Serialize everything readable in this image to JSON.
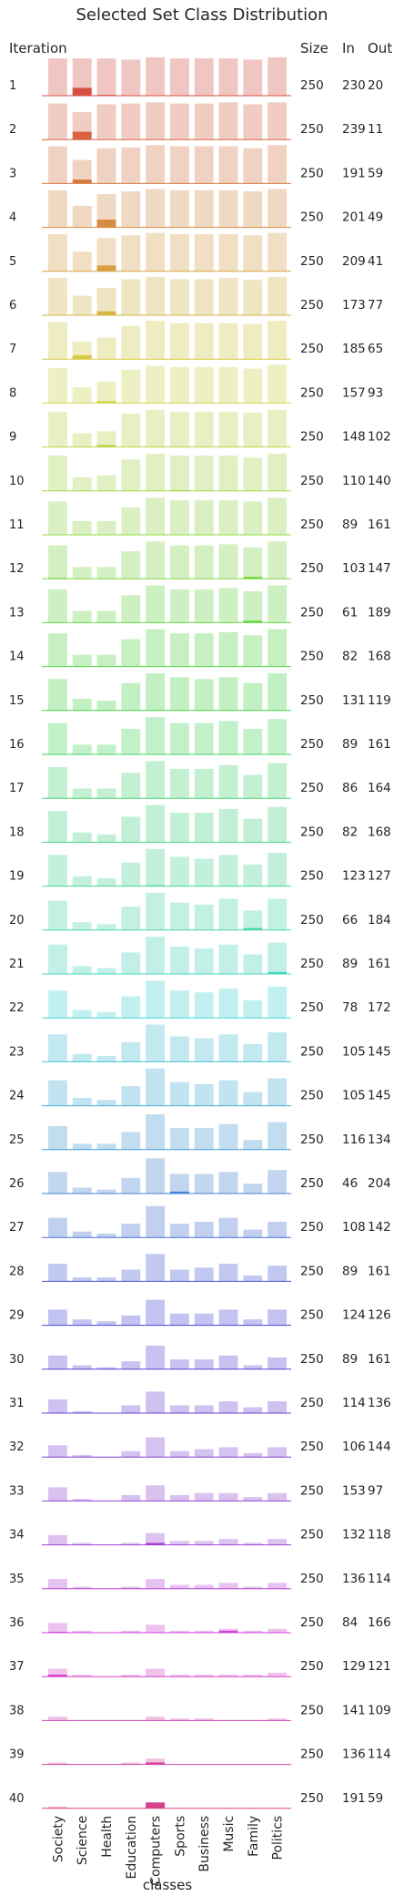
{
  "chart_data": {
    "type": "bar",
    "title": "Selected Set Class Distribution",
    "row_axis_label": "Iteration",
    "stat_headers": [
      "Size",
      "In",
      "Out"
    ],
    "xlabel": "classes",
    "categories": [
      "Society",
      "Science",
      "Health",
      "Education",
      "Computers",
      "Sports",
      "Business",
      "Music",
      "Family",
      "Politics"
    ],
    "ylim": [
      0,
      1
    ],
    "rows": [
      {
        "iteration": "1",
        "size": 250,
        "in": 230,
        "out": 20,
        "total": [
          0.95,
          0.95,
          0.95,
          0.92,
          0.98,
          0.95,
          0.95,
          0.95,
          0.92,
          0.98
        ],
        "in_values": [
          0,
          0.2,
          0.02,
          0,
          0,
          0,
          0,
          0,
          0,
          0
        ]
      },
      {
        "iteration": "2",
        "size": 250,
        "in": 239,
        "out": 11,
        "total": [
          0.92,
          0.7,
          0.9,
          0.92,
          0.95,
          0.92,
          0.92,
          0.95,
          0.9,
          0.95
        ],
        "in_values": [
          0,
          0.2,
          0,
          0,
          0,
          0,
          0,
          0,
          0,
          0
        ]
      },
      {
        "iteration": "3",
        "size": 250,
        "in": 191,
        "out": 59,
        "total": [
          0.95,
          0.6,
          0.9,
          0.92,
          0.98,
          0.95,
          0.95,
          0.95,
          0.9,
          0.98
        ],
        "in_values": [
          0,
          0.1,
          0,
          0,
          0,
          0,
          0,
          0,
          0,
          0
        ]
      },
      {
        "iteration": "4",
        "size": 250,
        "in": 201,
        "out": 49,
        "total": [
          0.95,
          0.55,
          0.85,
          0.92,
          0.98,
          0.95,
          0.95,
          0.95,
          0.92,
          0.98
        ],
        "in_values": [
          0,
          0,
          0.2,
          0,
          0,
          0,
          0,
          0,
          0,
          0
        ]
      },
      {
        "iteration": "5",
        "size": 250,
        "in": 209,
        "out": 41,
        "total": [
          0.95,
          0.5,
          0.85,
          0.92,
          0.98,
          0.95,
          0.95,
          0.95,
          0.92,
          0.98
        ],
        "in_values": [
          0,
          0,
          0.15,
          0,
          0,
          0,
          0,
          0,
          0,
          0
        ]
      },
      {
        "iteration": "6",
        "size": 250,
        "in": 173,
        "out": 77,
        "total": [
          0.95,
          0.5,
          0.7,
          0.92,
          0.98,
          0.92,
          0.92,
          0.95,
          0.9,
          0.98
        ],
        "in_values": [
          0,
          0,
          0.1,
          0,
          0,
          0,
          0,
          0,
          0,
          0
        ]
      },
      {
        "iteration": "7",
        "size": 250,
        "in": 185,
        "out": 65,
        "total": [
          0.95,
          0.45,
          0.55,
          0.85,
          0.98,
          0.92,
          0.92,
          0.92,
          0.9,
          0.98
        ],
        "in_values": [
          0,
          0.1,
          0,
          0,
          0,
          0,
          0,
          0,
          0,
          0
        ]
      },
      {
        "iteration": "8",
        "size": 250,
        "in": 157,
        "out": 93,
        "total": [
          0.9,
          0.4,
          0.55,
          0.85,
          0.95,
          0.92,
          0.92,
          0.92,
          0.88,
          0.98
        ],
        "in_values": [
          0,
          0,
          0.05,
          0,
          0,
          0,
          0,
          0,
          0,
          0
        ]
      },
      {
        "iteration": "9",
        "size": 250,
        "in": 148,
        "out": 102,
        "total": [
          0.9,
          0.35,
          0.4,
          0.85,
          0.95,
          0.9,
          0.9,
          0.9,
          0.88,
          0.95
        ],
        "in_values": [
          0,
          0,
          0.05,
          0,
          0,
          0,
          0,
          0,
          0,
          0
        ]
      },
      {
        "iteration": "10",
        "size": 250,
        "in": 110,
        "out": 140,
        "total": [
          0.9,
          0.35,
          0.4,
          0.8,
          0.95,
          0.9,
          0.9,
          0.9,
          0.85,
          0.95
        ],
        "in_values": [
          0,
          0,
          0,
          0,
          0,
          0.02,
          0,
          0,
          0,
          0
        ]
      },
      {
        "iteration": "11",
        "size": 250,
        "in": 89,
        "out": 161,
        "total": [
          0.85,
          0.35,
          0.35,
          0.7,
          0.95,
          0.88,
          0.88,
          0.88,
          0.85,
          0.95
        ],
        "in_values": [
          0,
          0,
          0,
          0,
          0,
          0,
          0,
          0,
          0,
          0
        ]
      },
      {
        "iteration": "12",
        "size": 250,
        "in": 103,
        "out": 147,
        "total": [
          0.85,
          0.3,
          0.3,
          0.7,
          0.95,
          0.85,
          0.85,
          0.88,
          0.8,
          0.95
        ],
        "in_values": [
          0.02,
          0,
          0,
          0,
          0,
          0,
          0,
          0,
          0.05,
          0
        ]
      },
      {
        "iteration": "13",
        "size": 250,
        "in": 61,
        "out": 189,
        "total": [
          0.85,
          0.3,
          0.3,
          0.7,
          0.95,
          0.85,
          0.85,
          0.88,
          0.8,
          0.95
        ],
        "in_values": [
          0,
          0,
          0,
          0,
          0,
          0,
          0,
          0,
          0.05,
          0
        ]
      },
      {
        "iteration": "14",
        "size": 250,
        "in": 82,
        "out": 168,
        "total": [
          0.85,
          0.3,
          0.3,
          0.7,
          0.95,
          0.85,
          0.85,
          0.88,
          0.8,
          0.95
        ],
        "in_values": [
          0,
          0,
          0,
          0,
          0,
          0,
          0,
          0,
          0,
          0
        ]
      },
      {
        "iteration": "15",
        "size": 250,
        "in": 131,
        "out": 119,
        "total": [
          0.8,
          0.3,
          0.25,
          0.7,
          0.95,
          0.85,
          0.8,
          0.85,
          0.7,
          0.95
        ],
        "in_values": [
          0,
          0,
          0,
          0,
          0,
          0,
          0,
          0,
          0,
          0
        ]
      },
      {
        "iteration": "16",
        "size": 250,
        "in": 89,
        "out": 161,
        "total": [
          0.8,
          0.25,
          0.25,
          0.65,
          0.95,
          0.8,
          0.8,
          0.85,
          0.65,
          0.9
        ],
        "in_values": [
          0,
          0,
          0,
          0,
          0,
          0,
          0,
          0,
          0,
          0
        ]
      },
      {
        "iteration": "17",
        "size": 250,
        "in": 86,
        "out": 164,
        "total": [
          0.8,
          0.25,
          0.25,
          0.65,
          0.95,
          0.75,
          0.75,
          0.85,
          0.6,
          0.9
        ],
        "in_values": [
          0,
          0,
          0,
          0,
          0,
          0,
          0,
          0,
          0,
          0
        ]
      },
      {
        "iteration": "18",
        "size": 250,
        "in": 82,
        "out": 168,
        "total": [
          0.8,
          0.25,
          0.2,
          0.65,
          0.95,
          0.75,
          0.75,
          0.85,
          0.6,
          0.9
        ],
        "in_values": [
          0,
          0,
          0,
          0,
          0,
          0,
          0,
          0,
          0,
          0
        ]
      },
      {
        "iteration": "19",
        "size": 250,
        "in": 123,
        "out": 127,
        "total": [
          0.8,
          0.25,
          0.2,
          0.6,
          0.95,
          0.75,
          0.7,
          0.8,
          0.55,
          0.85
        ],
        "in_values": [
          0,
          0,
          0,
          0,
          0.02,
          0,
          0,
          0,
          0,
          0
        ]
      },
      {
        "iteration": "20",
        "size": 250,
        "in": 66,
        "out": 184,
        "total": [
          0.75,
          0.2,
          0.15,
          0.6,
          0.95,
          0.7,
          0.65,
          0.8,
          0.5,
          0.8
        ],
        "in_values": [
          0,
          0,
          0,
          0,
          0,
          0,
          0,
          0,
          0.05,
          0
        ]
      },
      {
        "iteration": "21",
        "size": 250,
        "in": 89,
        "out": 161,
        "total": [
          0.75,
          0.2,
          0.15,
          0.55,
          0.95,
          0.7,
          0.65,
          0.75,
          0.5,
          0.8
        ],
        "in_values": [
          0,
          0,
          0,
          0,
          0,
          0,
          0,
          0,
          0,
          0.05
        ]
      },
      {
        "iteration": "22",
        "size": 250,
        "in": 78,
        "out": 172,
        "total": [
          0.7,
          0.2,
          0.15,
          0.55,
          0.95,
          0.7,
          0.65,
          0.75,
          0.45,
          0.8
        ],
        "in_values": [
          0,
          0,
          0,
          0,
          0,
          0,
          0,
          0,
          0,
          0
        ]
      },
      {
        "iteration": "23",
        "size": 250,
        "in": 105,
        "out": 145,
        "total": [
          0.7,
          0.2,
          0.15,
          0.5,
          0.95,
          0.65,
          0.6,
          0.7,
          0.45,
          0.75
        ],
        "in_values": [
          0,
          0,
          0,
          0,
          0,
          0,
          0,
          0,
          0,
          0
        ]
      },
      {
        "iteration": "24",
        "size": 250,
        "in": 105,
        "out": 145,
        "total": [
          0.65,
          0.2,
          0.15,
          0.5,
          0.95,
          0.6,
          0.55,
          0.65,
          0.35,
          0.7
        ],
        "in_values": [
          0,
          0,
          0,
          0,
          0,
          0,
          0,
          0,
          0,
          0
        ]
      },
      {
        "iteration": "25",
        "size": 250,
        "in": 116,
        "out": 134,
        "total": [
          0.6,
          0.15,
          0.15,
          0.45,
          0.9,
          0.55,
          0.55,
          0.65,
          0.25,
          0.7
        ],
        "in_values": [
          0,
          0,
          0,
          0,
          0,
          0,
          0,
          0,
          0,
          0
        ]
      },
      {
        "iteration": "26",
        "size": 250,
        "in": 46,
        "out": 204,
        "total": [
          0.55,
          0.15,
          0.1,
          0.4,
          0.9,
          0.5,
          0.5,
          0.55,
          0.25,
          0.6
        ],
        "in_values": [
          0,
          0,
          0,
          0,
          0,
          0.05,
          0,
          0,
          0,
          0
        ]
      },
      {
        "iteration": "27",
        "size": 250,
        "in": 108,
        "out": 142,
        "total": [
          0.5,
          0.15,
          0.1,
          0.35,
          0.8,
          0.35,
          0.4,
          0.5,
          0.2,
          0.4
        ],
        "in_values": [
          0,
          0,
          0,
          0,
          0,
          0,
          0,
          0,
          0,
          0
        ]
      },
      {
        "iteration": "28",
        "size": 250,
        "in": 89,
        "out": 161,
        "total": [
          0.45,
          0.1,
          0.1,
          0.3,
          0.7,
          0.3,
          0.35,
          0.45,
          0.15,
          0.4
        ],
        "in_values": [
          0,
          0,
          0,
          0,
          0,
          0,
          0,
          0,
          0,
          0
        ]
      },
      {
        "iteration": "29",
        "size": 250,
        "in": 124,
        "out": 126,
        "total": [
          0.4,
          0.15,
          0.1,
          0.25,
          0.65,
          0.3,
          0.3,
          0.4,
          0.15,
          0.4
        ],
        "in_values": [
          0,
          0,
          0,
          0,
          0,
          0,
          0,
          0,
          0,
          0
        ]
      },
      {
        "iteration": "30",
        "size": 250,
        "in": 89,
        "out": 161,
        "total": [
          0.35,
          0.1,
          0.05,
          0.2,
          0.6,
          0.25,
          0.25,
          0.35,
          0.1,
          0.3
        ],
        "in_values": [
          0,
          0,
          0,
          0,
          0,
          0,
          0,
          0,
          0,
          0
        ]
      },
      {
        "iteration": "31",
        "size": 250,
        "in": 114,
        "out": 136,
        "total": [
          0.35,
          0.05,
          0,
          0.2,
          0.55,
          0.2,
          0.2,
          0.3,
          0.15,
          0.3
        ],
        "in_values": [
          0,
          0,
          0,
          0,
          0,
          0,
          0,
          0,
          0,
          0
        ]
      },
      {
        "iteration": "32",
        "size": 250,
        "in": 106,
        "out": 144,
        "total": [
          0.3,
          0.05,
          0,
          0.15,
          0.5,
          0.15,
          0.2,
          0.25,
          0.1,
          0.25
        ],
        "in_values": [
          0,
          0,
          0,
          0,
          0,
          0,
          0,
          0,
          0,
          0
        ]
      },
      {
        "iteration": "33",
        "size": 250,
        "in": 153,
        "out": 97,
        "total": [
          0.35,
          0.05,
          0,
          0.15,
          0.4,
          0.15,
          0.2,
          0.2,
          0.1,
          0.2
        ],
        "in_values": [
          0,
          0,
          0,
          0,
          0,
          0,
          0,
          0,
          0,
          0
        ]
      },
      {
        "iteration": "34",
        "size": 250,
        "in": 132,
        "out": 118,
        "total": [
          0.25,
          0.05,
          0,
          0.05,
          0.3,
          0.1,
          0.1,
          0.15,
          0.05,
          0.15
        ],
        "in_values": [
          0,
          0,
          0,
          0,
          0.05,
          0,
          0,
          0,
          0,
          0
        ]
      },
      {
        "iteration": "35",
        "size": 250,
        "in": 136,
        "out": 114,
        "total": [
          0.25,
          0.05,
          0,
          0.05,
          0.25,
          0.1,
          0.1,
          0.15,
          0.05,
          0.15
        ],
        "in_values": [
          0,
          0,
          0,
          0,
          0,
          0,
          0,
          0,
          0,
          0
        ]
      },
      {
        "iteration": "36",
        "size": 250,
        "in": 84,
        "out": 166,
        "total": [
          0.25,
          0.05,
          0,
          0.05,
          0.2,
          0.05,
          0.05,
          0.1,
          0.05,
          0.1
        ],
        "in_values": [
          0.02,
          0,
          0,
          0,
          0,
          0,
          0,
          0.05,
          0,
          0
        ]
      },
      {
        "iteration": "37",
        "size": 250,
        "in": 129,
        "out": 121,
        "total": [
          0.2,
          0.05,
          0,
          0.05,
          0.2,
          0.05,
          0.05,
          0.05,
          0.05,
          0.1
        ],
        "in_values": [
          0.05,
          0,
          0,
          0,
          0,
          0,
          0,
          0,
          0,
          0
        ]
      },
      {
        "iteration": "38",
        "size": 250,
        "in": 141,
        "out": 109,
        "total": [
          0.1,
          0,
          0,
          0,
          0.1,
          0.05,
          0.05,
          0,
          0,
          0.05
        ],
        "in_values": [
          0,
          0,
          0,
          0,
          0,
          0,
          0,
          0,
          0,
          0
        ]
      },
      {
        "iteration": "39",
        "size": 250,
        "in": 136,
        "out": 114,
        "total": [
          0.05,
          0,
          0,
          0.05,
          0.15,
          0,
          0,
          0,
          0,
          0
        ],
        "in_values": [
          0,
          0,
          0,
          0,
          0.05,
          0,
          0,
          0,
          0,
          0
        ]
      },
      {
        "iteration": "40",
        "size": 250,
        "in": 191,
        "out": 59,
        "total": [
          0.05,
          0,
          0,
          0,
          0.15,
          0,
          0,
          0,
          0,
          0
        ],
        "in_values": [
          0,
          0,
          0,
          0,
          0.15,
          0,
          0,
          0,
          0,
          0
        ]
      }
    ]
  }
}
